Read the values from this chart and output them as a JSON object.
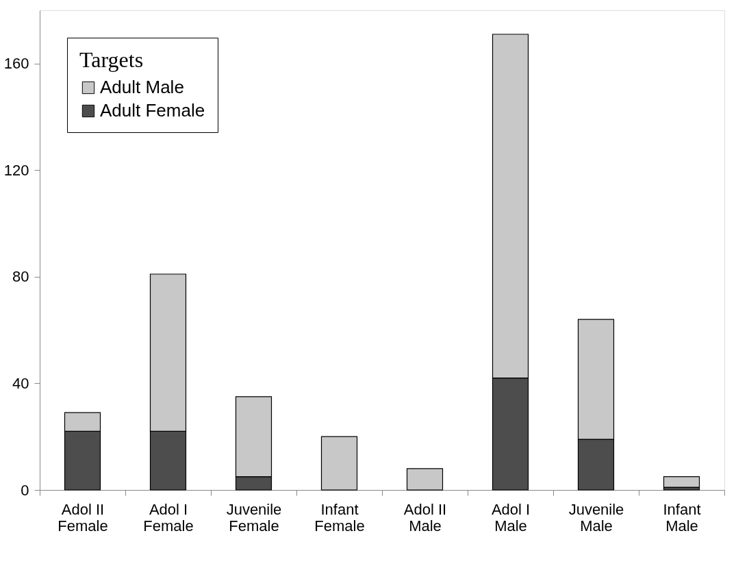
{
  "chart_data": {
    "type": "bar",
    "stacked": true,
    "legend_title": "Targets",
    "legend": "top left",
    "grid": false,
    "categories": [
      "Adol II Female",
      "Adol I Female",
      "Juvenile Female",
      "Infant Female",
      "Adol II Male",
      "Adol I Male",
      "Juvenile Male",
      "Infant Male"
    ],
    "series": [
      {
        "name": "Adult Female",
        "color": "#4d4d4d",
        "values": [
          22,
          22,
          5,
          0,
          0,
          42,
          19,
          1
        ]
      },
      {
        "name": "Adult Male",
        "color": "#c8c8c8",
        "values": [
          7,
          59,
          30,
          20,
          8,
          129,
          45,
          4
        ]
      }
    ],
    "ylim": [
      0,
      180
    ],
    "yticks": [
      0,
      40,
      80,
      120,
      160
    ]
  }
}
